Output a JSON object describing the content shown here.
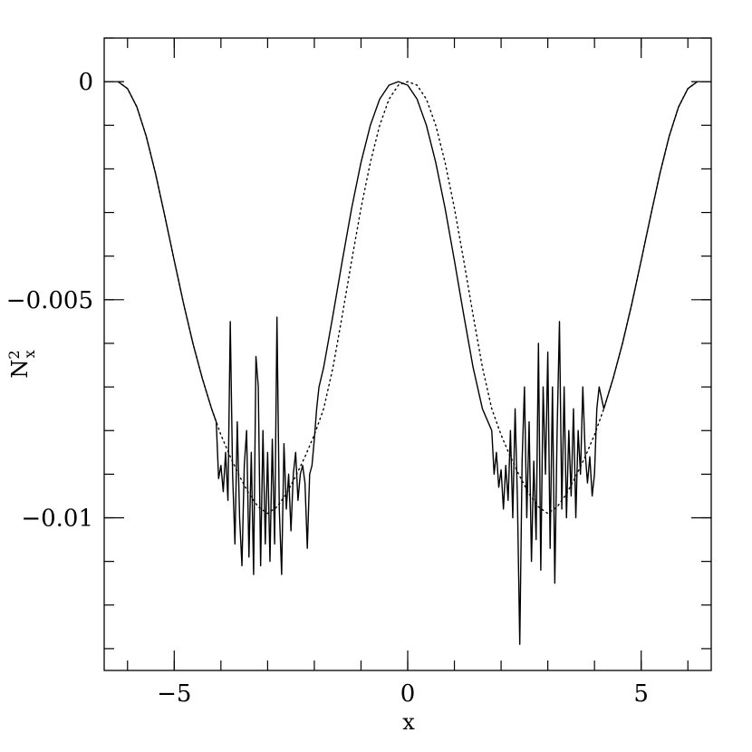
{
  "chart_data": {
    "type": "line",
    "xlabel": "x",
    "ylabel": {
      "base": "N",
      "superscript": "2",
      "subscript": "x"
    },
    "xlim": [
      -6.5,
      6.5
    ],
    "ylim": [
      -0.0135,
      0.001
    ],
    "x_ticks": [
      {
        "value": -5,
        "label": "−5"
      },
      {
        "value": 0,
        "label": "0"
      },
      {
        "value": 5,
        "label": "5"
      }
    ],
    "y_ticks": [
      {
        "value": 0,
        "label": "0"
      },
      {
        "value": -0.005,
        "label": "−0.005"
      },
      {
        "value": -0.01,
        "label": "−0.01"
      }
    ],
    "x_minor_step": 1,
    "y_minor_step": 0.001,
    "series": [
      {
        "style": "dotted",
        "x": [
          -6.2,
          -6.0,
          -5.8,
          -5.6,
          -5.4,
          -5.2,
          -5.0,
          -4.8,
          -4.6,
          -4.4,
          -4.2,
          -4.0,
          -3.8,
          -3.6,
          -3.4,
          -3.2,
          -3.0,
          -2.8,
          -2.6,
          -2.4,
          -2.2,
          -2.0,
          -1.8,
          -1.6,
          -1.4,
          -1.2,
          -1.0,
          -0.8,
          -0.6,
          -0.4,
          -0.2,
          0.0,
          0.2,
          0.4,
          0.6,
          0.8,
          1.0,
          1.2,
          1.4,
          1.6,
          1.8,
          2.0,
          2.2,
          2.4,
          2.6,
          2.8,
          3.0,
          3.2,
          3.4,
          3.6,
          3.8,
          4.0,
          4.2,
          4.4,
          4.6,
          4.8,
          5.0,
          5.2,
          5.4,
          5.6,
          5.8,
          6.0,
          6.2
        ],
        "y": [
          0.0,
          -0.00016,
          -0.00058,
          -0.00125,
          -0.00211,
          -0.00309,
          -0.0041,
          -0.00509,
          -0.006,
          -0.0068,
          -0.0075,
          -0.0081,
          -0.0086,
          -0.00905,
          -0.00945,
          -0.00975,
          -0.0099,
          -0.00975,
          -0.00945,
          -0.00905,
          -0.0086,
          -0.0081,
          -0.0075,
          -0.00655,
          -0.00535,
          -0.0041,
          -0.0029,
          -0.00185,
          -0.001,
          -0.0004,
          -8e-05,
          0.0,
          -8e-05,
          -0.0004,
          -0.001,
          -0.00185,
          -0.0029,
          -0.0041,
          -0.00535,
          -0.00655,
          -0.0075,
          -0.0081,
          -0.0086,
          -0.00905,
          -0.00945,
          -0.00975,
          -0.0099,
          -0.00975,
          -0.00945,
          -0.00905,
          -0.0086,
          -0.0081,
          -0.0075,
          -0.0068,
          -0.006,
          -0.00509,
          -0.0041,
          -0.00309,
          -0.00211,
          -0.00125,
          -0.00058,
          -0.00016,
          0.0
        ]
      },
      {
        "style": "solid",
        "x": [
          -6.2,
          -6.0,
          -5.8,
          -5.6,
          -5.4,
          -5.2,
          -5.0,
          -4.8,
          -4.6,
          -4.4,
          -4.2,
          -4.1,
          -4.05,
          -4.0,
          -3.95,
          -3.9,
          -3.85,
          -3.8,
          -3.75,
          -3.7,
          -3.65,
          -3.6,
          -3.55,
          -3.5,
          -3.45,
          -3.4,
          -3.35,
          -3.3,
          -3.25,
          -3.2,
          -3.15,
          -3.1,
          -3.05,
          -3.0,
          -2.95,
          -2.9,
          -2.85,
          -2.8,
          -2.75,
          -2.7,
          -2.65,
          -2.6,
          -2.55,
          -2.5,
          -2.45,
          -2.4,
          -2.35,
          -2.3,
          -2.25,
          -2.2,
          -2.15,
          -2.1,
          -2.05,
          -2.0,
          -1.95,
          -1.9,
          -1.8,
          -1.6,
          -1.4,
          -1.2,
          -1.0,
          -0.8,
          -0.6,
          -0.4,
          -0.2,
          0.0,
          0.2,
          0.4,
          0.6,
          0.8,
          1.0,
          1.2,
          1.4,
          1.6,
          1.8,
          1.85,
          1.9,
          1.95,
          2.0,
          2.05,
          2.1,
          2.15,
          2.2,
          2.25,
          2.3,
          2.35,
          2.4,
          2.45,
          2.5,
          2.55,
          2.6,
          2.65,
          2.7,
          2.75,
          2.8,
          2.85,
          2.9,
          2.95,
          3.0,
          3.05,
          3.1,
          3.15,
          3.2,
          3.25,
          3.3,
          3.35,
          3.4,
          3.45,
          3.5,
          3.55,
          3.6,
          3.65,
          3.7,
          3.75,
          3.8,
          3.85,
          3.9,
          3.95,
          4.0,
          4.05,
          4.1,
          4.2,
          4.4,
          4.6,
          4.8,
          5.0,
          5.2,
          5.4,
          5.6,
          5.8,
          6.0,
          6.2
        ],
        "y": [
          0.0,
          -0.00016,
          -0.00058,
          -0.00125,
          -0.00211,
          -0.00309,
          -0.0041,
          -0.00509,
          -0.006,
          -0.0068,
          -0.0075,
          -0.0078,
          -0.0091,
          -0.0088,
          -0.0094,
          -0.0085,
          -0.0096,
          -0.0055,
          -0.009,
          -0.0106,
          -0.0078,
          -0.01,
          -0.0111,
          -0.0088,
          -0.008,
          -0.0109,
          -0.0085,
          -0.0113,
          -0.0063,
          -0.007,
          -0.0111,
          -0.008,
          -0.0106,
          -0.0085,
          -0.011,
          -0.0082,
          -0.0106,
          -0.0054,
          -0.0098,
          -0.0113,
          -0.0083,
          -0.0098,
          -0.009,
          -0.0103,
          -0.009,
          -0.0085,
          -0.0096,
          -0.009,
          -0.0088,
          -0.0092,
          -0.0107,
          -0.009,
          -0.0088,
          -0.0082,
          -0.0075,
          -0.007,
          -0.00655,
          -0.00535,
          -0.0041,
          -0.0029,
          -0.00185,
          -0.001,
          -0.0004,
          -8e-05,
          0.0,
          -8e-05,
          -0.0004,
          -0.001,
          -0.00185,
          -0.0029,
          -0.0041,
          -0.00535,
          -0.00655,
          -0.0075,
          -0.008,
          -0.009,
          -0.0085,
          -0.0093,
          -0.0089,
          -0.0098,
          -0.0088,
          -0.0096,
          -0.008,
          -0.01,
          -0.0075,
          -0.0096,
          -0.0129,
          -0.0087,
          -0.007,
          -0.01,
          -0.0078,
          -0.011,
          -0.0087,
          -0.0105,
          -0.006,
          -0.0112,
          -0.007,
          -0.009,
          -0.0062,
          -0.0107,
          -0.007,
          -0.0115,
          -0.008,
          -0.0055,
          -0.0098,
          -0.007,
          -0.01,
          -0.008,
          -0.0095,
          -0.0075,
          -0.01,
          -0.008,
          -0.009,
          -0.007,
          -0.0085,
          -0.0092,
          -0.0086,
          -0.0095,
          -0.009,
          -0.0075,
          -0.007,
          -0.0075,
          -0.0068,
          -0.006,
          -0.00509,
          -0.0041,
          -0.00309,
          -0.00211,
          -0.00125,
          -0.00058,
          -0.00016,
          0.0
        ]
      }
    ]
  }
}
